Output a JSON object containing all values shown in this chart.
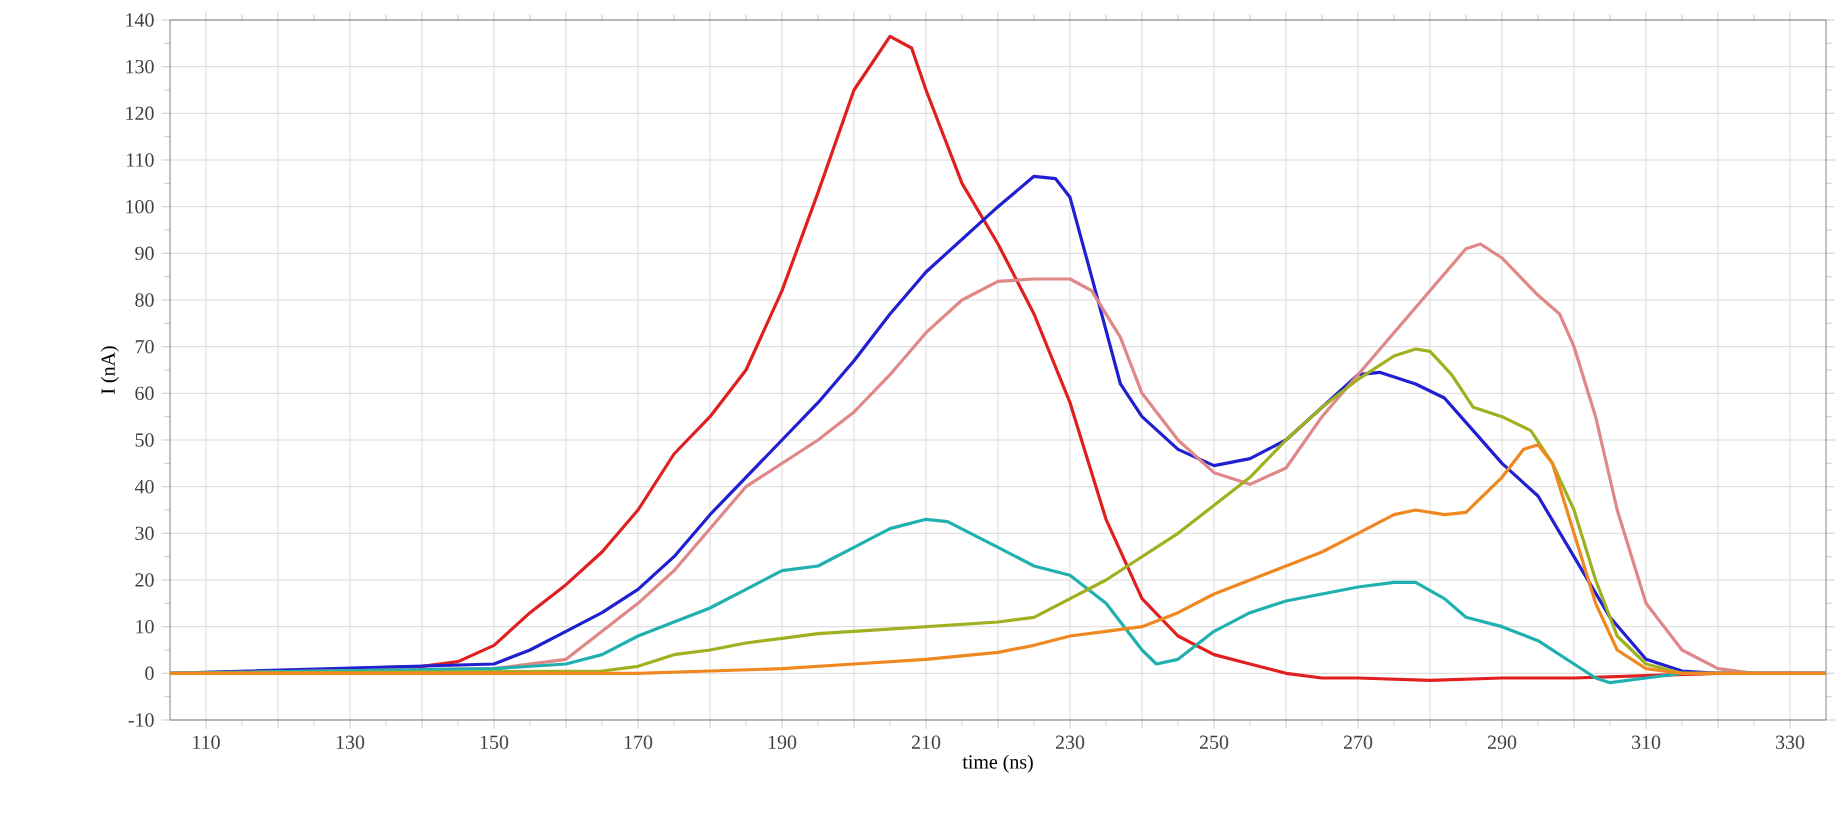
{
  "chart_data": {
    "type": "line",
    "xlabel": "time (ns)",
    "ylabel": "I (nA)",
    "xlim": [
      105,
      335
    ],
    "ylim": [
      -10,
      140
    ],
    "xticks": [
      110,
      {
        "value": 120,
        "label": null
      },
      130,
      {
        "value": 140,
        "label": null
      },
      150,
      {
        "value": 160,
        "label": null
      },
      170,
      {
        "value": 180,
        "label": null
      },
      190,
      {
        "value": 200,
        "label": null
      },
      210,
      {
        "value": 220,
        "label": null
      },
      230,
      {
        "value": 240,
        "label": null
      },
      250,
      {
        "value": 260,
        "label": null
      },
      270,
      {
        "value": 280,
        "label": null
      },
      290,
      {
        "value": 300,
        "label": null
      },
      310,
      {
        "value": 320,
        "label": null
      },
      330
    ],
    "yticks": [
      -10,
      0,
      10,
      20,
      30,
      40,
      50,
      60,
      70,
      80,
      90,
      100,
      110,
      120,
      130,
      140
    ],
    "grid": true,
    "marker": "none",
    "line_style": "solid",
    "series": [
      {
        "color": "#e02020",
        "x": [
          130,
          140,
          145,
          150,
          155,
          160,
          165,
          170,
          175,
          180,
          185,
          190,
          195,
          200,
          205,
          208,
          210,
          215,
          220,
          225,
          230,
          235,
          240,
          245,
          250,
          255,
          260,
          265,
          270,
          280,
          290,
          300,
          310,
          320,
          335
        ],
        "values": [
          1,
          1.5,
          2.5,
          6,
          13,
          19,
          26,
          35,
          47,
          55,
          65,
          82,
          103,
          125,
          136.5,
          134,
          125,
          105,
          92,
          77,
          58,
          33,
          16,
          8,
          4,
          2,
          0,
          -1,
          -1,
          -1.5,
          -1,
          -1,
          -0.5,
          0,
          0
        ]
      },
      {
        "color": "#2020d0",
        "x": [
          105,
          150,
          155,
          160,
          165,
          170,
          175,
          180,
          185,
          190,
          195,
          200,
          205,
          210,
          215,
          220,
          225,
          228,
          230,
          233,
          237,
          240,
          245,
          250,
          255,
          260,
          265,
          270,
          273,
          278,
          282,
          286,
          290,
          295,
          300,
          305,
          310,
          315,
          320,
          335
        ],
        "values": [
          0,
          2,
          5,
          9,
          13,
          18,
          25,
          34,
          42,
          50,
          58,
          67,
          77,
          86,
          93,
          100,
          106.5,
          106,
          102,
          85,
          62,
          55,
          48,
          44.5,
          46,
          50,
          57,
          64,
          64.5,
          62,
          59,
          52,
          45,
          38,
          25,
          12,
          3,
          0.5,
          0,
          0
        ]
      },
      {
        "color": "#e08888",
        "x": [
          105,
          150,
          160,
          165,
          170,
          175,
          180,
          185,
          190,
          195,
          200,
          205,
          210,
          215,
          220,
          225,
          230,
          233,
          237,
          240,
          245,
          250,
          255,
          260,
          265,
          270,
          275,
          280,
          285,
          287,
          290,
          295,
          298,
          300,
          303,
          306,
          310,
          315,
          320,
          325,
          335
        ],
        "values": [
          0,
          1,
          3,
          9,
          15,
          22,
          31,
          40,
          45,
          50,
          56,
          64,
          73,
          80,
          84,
          84.5,
          84.5,
          82,
          72,
          60,
          50,
          43,
          40.5,
          44,
          55,
          64,
          73,
          82,
          91,
          92,
          89,
          81,
          77,
          70,
          55,
          35,
          15,
          5,
          1,
          0,
          0
        ]
      },
      {
        "color": "#20b0b0",
        "x": [
          105,
          150,
          160,
          165,
          170,
          175,
          180,
          185,
          190,
          195,
          200,
          205,
          210,
          213,
          220,
          225,
          230,
          235,
          240,
          242,
          245,
          250,
          255,
          260,
          265,
          270,
          275,
          278,
          282,
          285,
          290,
          295,
          300,
          303,
          305,
          310,
          315,
          335
        ],
        "values": [
          0,
          1,
          2,
          4,
          8,
          11,
          14,
          18,
          22,
          23,
          27,
          31,
          33,
          32.5,
          27,
          23,
          21,
          15,
          5,
          2,
          3,
          9,
          13,
          15.5,
          17,
          18.5,
          19.5,
          19.5,
          16,
          12,
          10,
          7,
          2,
          -1,
          -2,
          -1,
          0,
          0
        ]
      },
      {
        "color": "#a0b020",
        "x": [
          105,
          165,
          170,
          175,
          180,
          185,
          190,
          195,
          200,
          210,
          220,
          225,
          230,
          235,
          240,
          245,
          250,
          255,
          260,
          265,
          270,
          275,
          278,
          280,
          283,
          286,
          290,
          294,
          297,
          300,
          303,
          306,
          310,
          315,
          335
        ],
        "values": [
          0,
          0.5,
          1.5,
          4,
          5,
          6.5,
          7.5,
          8.5,
          9,
          10,
          11,
          12,
          16,
          20,
          25,
          30,
          36,
          42,
          50,
          57,
          63,
          68,
          69.5,
          69,
          64,
          57,
          55,
          52,
          45,
          35,
          20,
          8,
          2,
          0,
          0
        ]
      },
      {
        "color": "#f08820",
        "x": [
          105,
          170,
          180,
          190,
          200,
          210,
          220,
          225,
          230,
          235,
          240,
          245,
          250,
          255,
          260,
          265,
          270,
          275,
          278,
          282,
          285,
          290,
          293,
          295,
          297,
          300,
          303,
          306,
          310,
          315,
          335
        ],
        "values": [
          0,
          0,
          0.5,
          1,
          2,
          3,
          4.5,
          6,
          8,
          9,
          10,
          13,
          17,
          20,
          23,
          26,
          30,
          34,
          35,
          34,
          34.5,
          42,
          48,
          49,
          45,
          30,
          15,
          5,
          1,
          0,
          0
        ]
      }
    ]
  }
}
